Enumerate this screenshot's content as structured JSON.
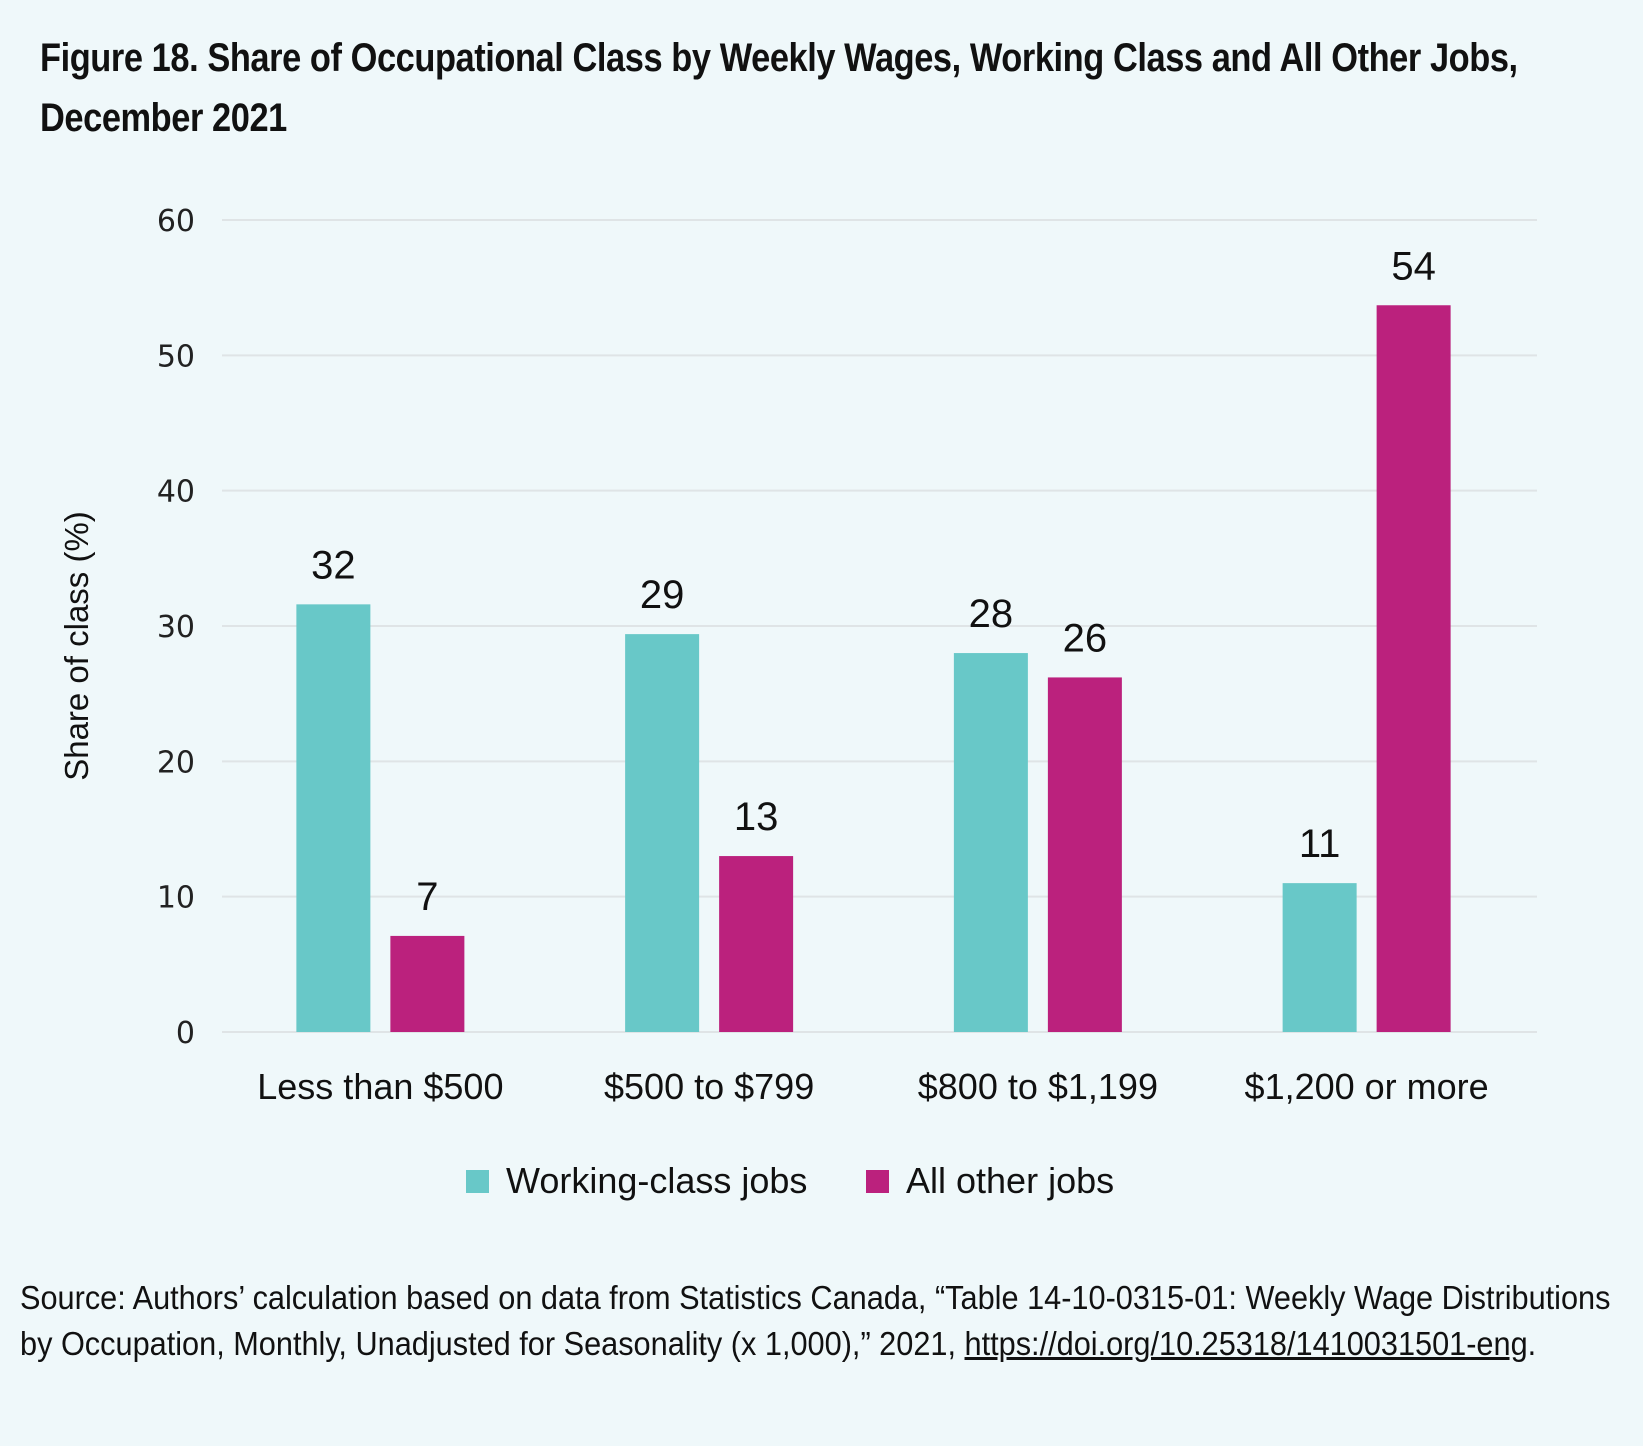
{
  "title": "Figure 18. Share of Occupational Class by Weekly Wages, Working Class and All Other Jobs, December 2021",
  "source": {
    "text": "Source: Authors’ calculation based on data from Statistics Canada, “Table 14-10-0315-01: Weekly Wage Distributions by Occupation, Monthly, Unadjusted for Seasonality (x 1,000),” 2021, ",
    "link_text": "https://doi.org/10.25318/1410031501-eng",
    "trailing": "."
  },
  "chart_data": {
    "type": "bar",
    "title": "Figure 18. Share of Occupational Class by Weekly Wages, Working Class and All Other Jobs, December 2021",
    "xlabel": "",
    "ylabel": "Share of class (%)",
    "ylim": [
      0,
      60
    ],
    "yticks": [
      0,
      10,
      20,
      30,
      40,
      50,
      60
    ],
    "grid": true,
    "legend_position": "bottom-center",
    "categories": [
      "Less than $500",
      "$500 to $799",
      "$800 to $1,199",
      "$1,200 or more"
    ],
    "series": [
      {
        "name": "Working-class jobs",
        "color": "#68c8c8",
        "values": [
          31.6,
          29.4,
          28.0,
          11.0
        ],
        "labels": [
          "32",
          "29",
          "28",
          "11"
        ]
      },
      {
        "name": "All other jobs",
        "color": "#bb217d",
        "values": [
          7.1,
          13.0,
          26.2,
          53.7
        ],
        "labels": [
          "7",
          "13",
          "26",
          "54"
        ]
      }
    ]
  }
}
